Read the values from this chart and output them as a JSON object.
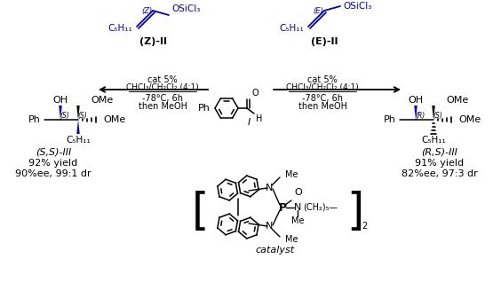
{
  "bg_color": "#ffffff",
  "blue_color": "#0000CC",
  "black_color": "#000000",
  "fig_width": 5.64,
  "fig_height": 3.27,
  "dpi": 100,
  "left_yield": "92% yield",
  "right_yield": "91% yield",
  "left_ee": "90%ee, 99:1 dr",
  "right_ee": "82%ee, 97:3 dr",
  "cat_label": "cat 5%",
  "solvent_label": "CHCl₃/CH₂Cl₂ (4:1)",
  "temp_label": "-78°C, 6h",
  "workup_label": "then MeOH",
  "catalyst_label": "catalyst"
}
